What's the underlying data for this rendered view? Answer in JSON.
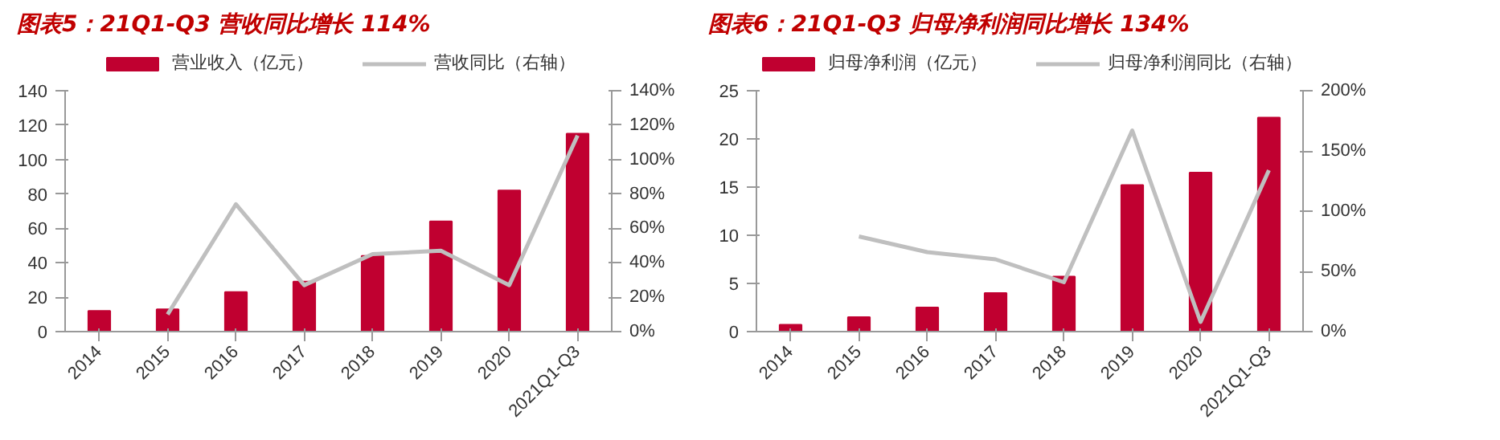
{
  "chart_data": [
    {
      "type": "bar",
      "title": "图表5：21Q1-Q3 营收同比增长 114%",
      "categories": [
        "2014",
        "2015",
        "2016",
        "2017",
        "2018",
        "2019",
        "2020",
        "2021Q1-Q3"
      ],
      "series": [
        {
          "name": "营业收入（亿元）",
          "color": "#c00030",
          "values": [
            12,
            13,
            23,
            29,
            44,
            64,
            82,
            115
          ]
        },
        {
          "name": "营收同比（右轴）",
          "type": "line",
          "axis": "y2",
          "color": "#bfbfbf",
          "values": [
            null,
            10,
            74,
            27,
            45,
            47,
            27,
            114
          ]
        }
      ],
      "ylim": [
        0,
        140
      ],
      "yticks": [
        0,
        20,
        40,
        60,
        80,
        100,
        120,
        140
      ],
      "y2lim": [
        0,
        140
      ],
      "y2ticks": [
        {
          "value": 0,
          "label": "0%"
        },
        {
          "value": 20,
          "label": "20%"
        },
        {
          "value": 40,
          "label": "40%"
        },
        {
          "value": 60,
          "label": "60%"
        },
        {
          "value": 80,
          "label": "80%"
        },
        {
          "value": 100,
          "label": "100%"
        },
        {
          "value": 120,
          "label": "120%"
        },
        {
          "value": 140,
          "label": "140%"
        }
      ],
      "legend": "top",
      "grid": false
    },
    {
      "type": "bar",
      "title": "图表6：21Q1-Q3 归母净利润同比增长 134%",
      "categories": [
        "2014",
        "2015",
        "2016",
        "2017",
        "2018",
        "2019",
        "2020",
        "2021Q1-Q3"
      ],
      "series": [
        {
          "name": "归母净利润（亿元）",
          "color": "#c00030",
          "values": [
            0.7,
            1.5,
            2.5,
            4.0,
            5.7,
            15.2,
            16.5,
            22.2
          ]
        },
        {
          "name": "归母净利润同比（右轴）",
          "type": "line",
          "axis": "y2",
          "color": "#bfbfbf",
          "values": [
            null,
            79,
            66,
            60,
            41,
            167,
            8,
            134
          ]
        }
      ],
      "ylim": [
        0,
        25
      ],
      "yticks": [
        0,
        5,
        10,
        15,
        20,
        25
      ],
      "y2lim": [
        0,
        200
      ],
      "y2ticks": [
        {
          "value": 0,
          "label": "0%"
        },
        {
          "value": 50,
          "label": "50%"
        },
        {
          "value": 100,
          "label": "100%"
        },
        {
          "value": 150,
          "label": "150%"
        },
        {
          "value": 200,
          "label": "200%"
        }
      ],
      "legend": "top",
      "grid": false
    }
  ]
}
